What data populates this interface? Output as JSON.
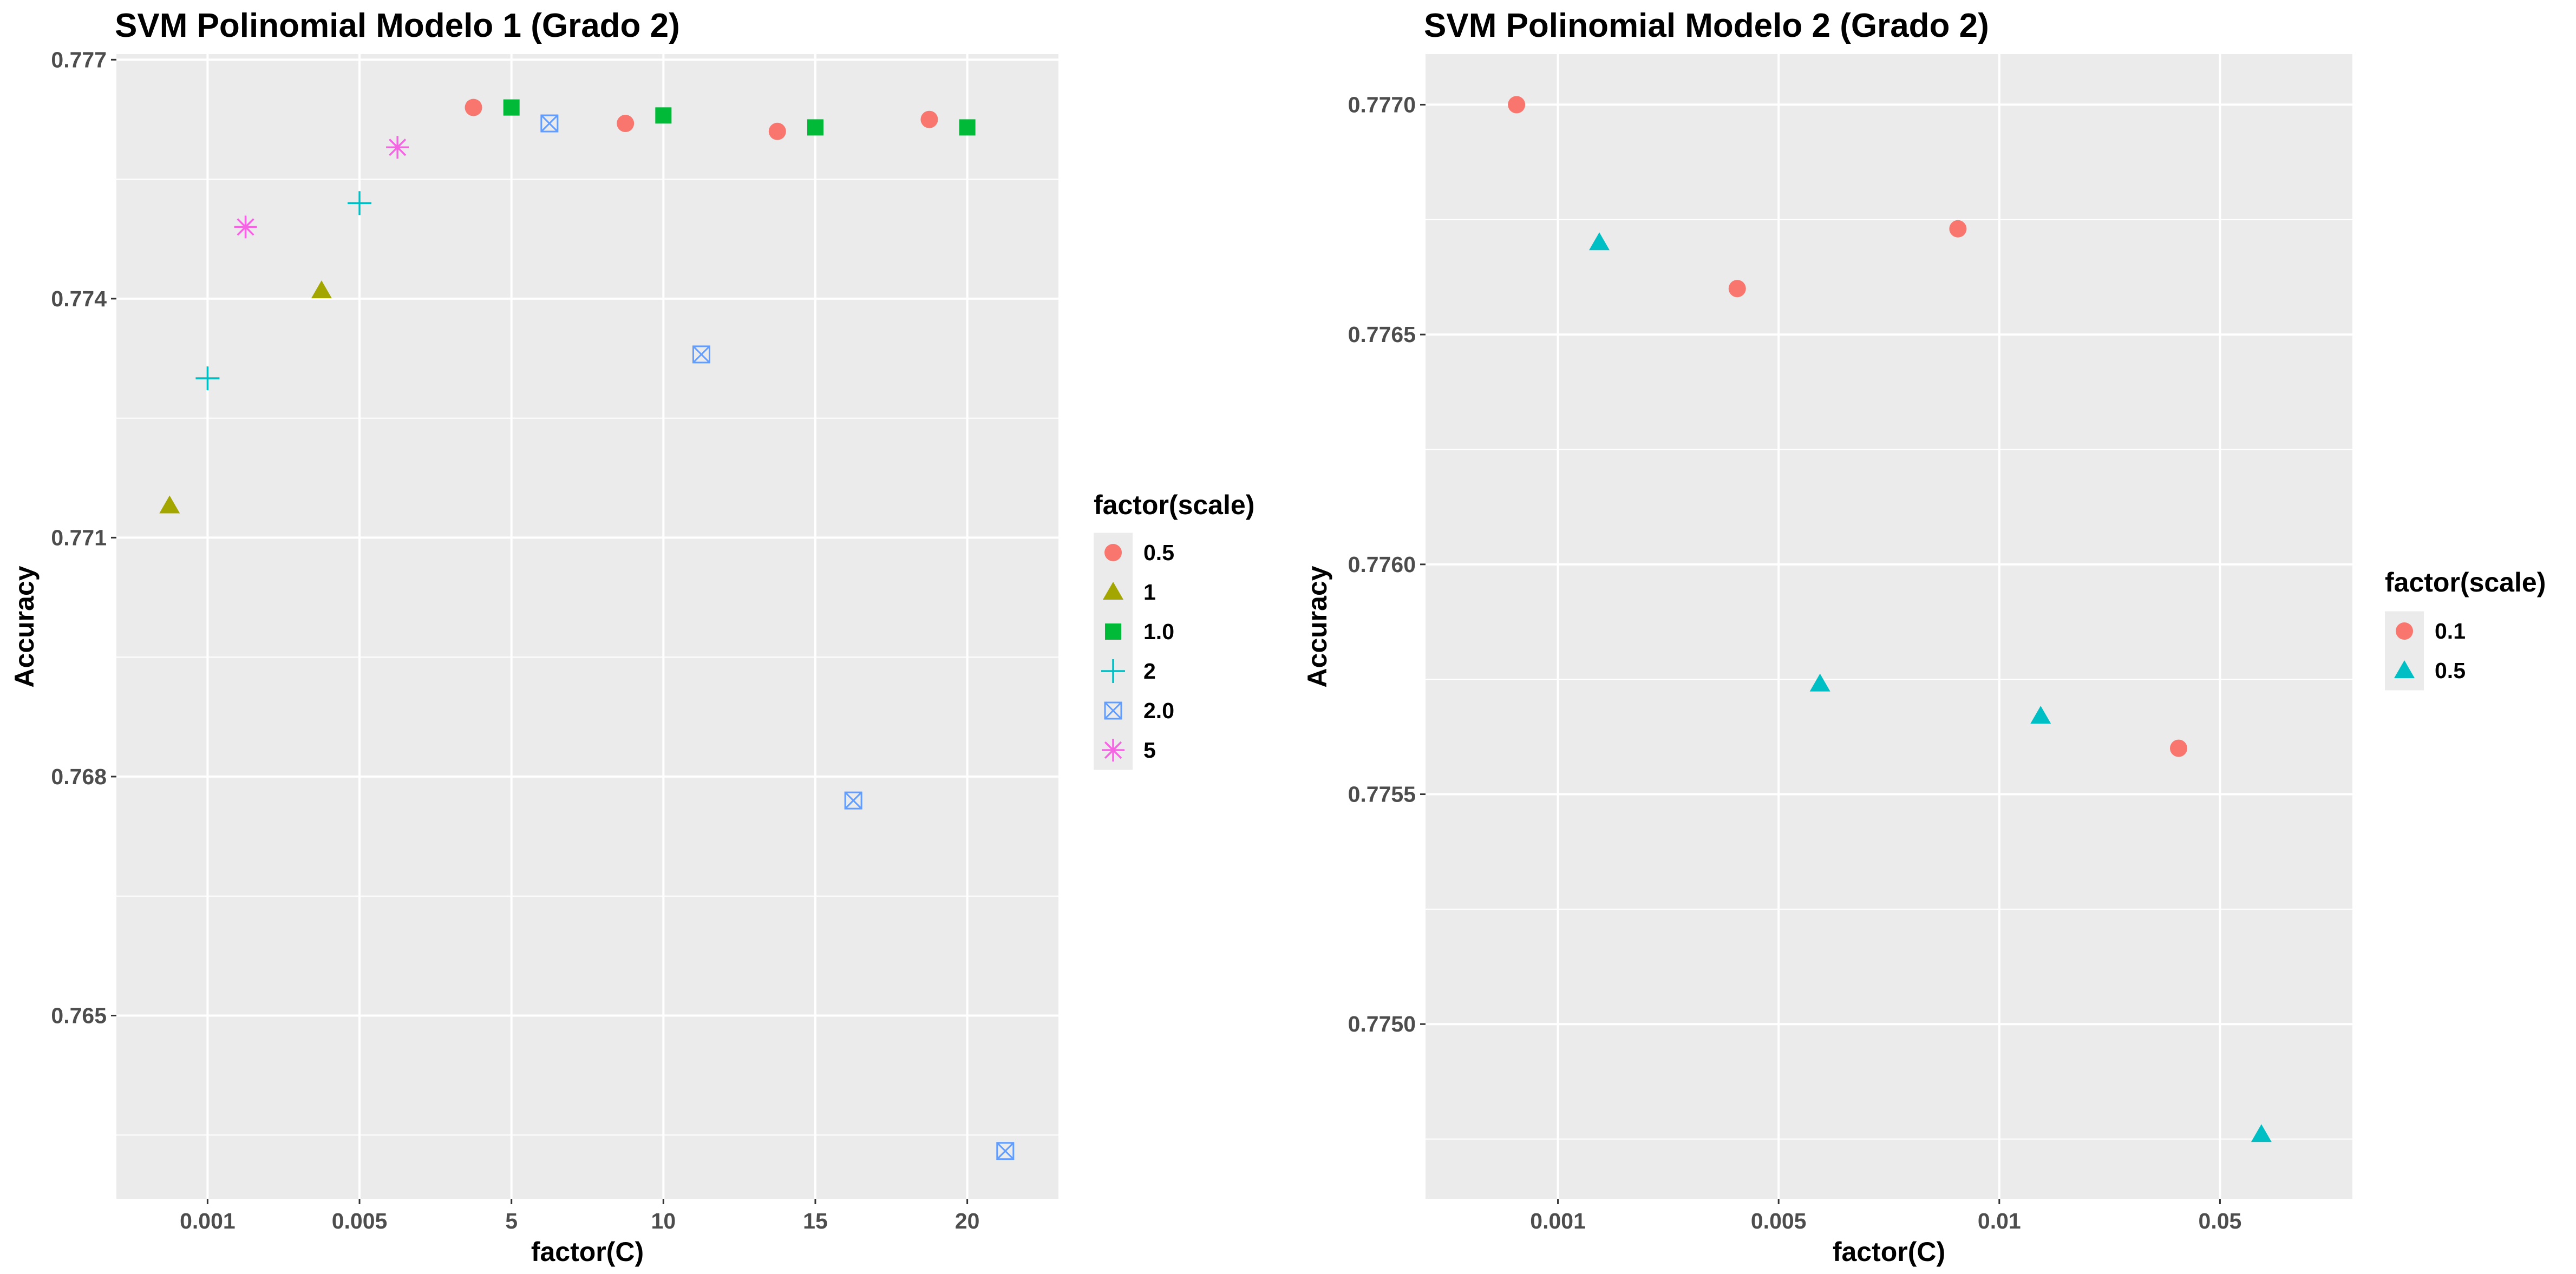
{
  "chart_data": [
    {
      "type": "scatter",
      "title": "SVM Polinomial Modelo 1 (Grado 2)",
      "xlabel": "factor(C)",
      "ylabel": "Accuracy",
      "categories": [
        "0.001",
        "0.005",
        "5",
        "10",
        "15",
        "20"
      ],
      "yticks": [
        "0.777",
        "0.774",
        "0.771",
        "0.768",
        "0.765"
      ],
      "yticks_values": [
        0.777,
        0.774,
        0.771,
        0.768,
        0.765
      ],
      "ylim": [
        0.7627,
        0.77707
      ],
      "legend_title": "factor(scale)",
      "legend_position": "right",
      "grid": true,
      "series": [
        {
          "name": "0.5",
          "shape": "circle",
          "color": "#F8766D",
          "points": [
            {
              "x": "5",
              "y": 0.7764
            },
            {
              "x": "10",
              "y": 0.7762
            },
            {
              "x": "15",
              "y": 0.7761
            },
            {
              "x": "20",
              "y": 0.77625
            }
          ]
        },
        {
          "name": "1",
          "shape": "triangle",
          "color": "#A3A500",
          "points": [
            {
              "x": "0.001",
              "y": 0.7714
            },
            {
              "x": "0.005",
              "y": 0.7741
            }
          ]
        },
        {
          "name": "1.0",
          "shape": "square",
          "color": "#00BA38",
          "points": [
            {
              "x": "5",
              "y": 0.7764
            },
            {
              "x": "10",
              "y": 0.7763
            },
            {
              "x": "15",
              "y": 0.77615
            },
            {
              "x": "20",
              "y": 0.77615
            }
          ]
        },
        {
          "name": "2",
          "shape": "plus",
          "color": "#00BFC4",
          "points": [
            {
              "x": "0.001",
              "y": 0.773
            },
            {
              "x": "0.005",
              "y": 0.7752
            }
          ]
        },
        {
          "name": "2.0",
          "shape": "boxcross",
          "color": "#619CFF",
          "points": [
            {
              "x": "5",
              "y": 0.7762
            },
            {
              "x": "10",
              "y": 0.7733
            },
            {
              "x": "15",
              "y": 0.7677
            },
            {
              "x": "20",
              "y": 0.7633
            }
          ]
        },
        {
          "name": "5",
          "shape": "asterisk",
          "color": "#F564E3",
          "points": [
            {
              "x": "0.001",
              "y": 0.7749
            },
            {
              "x": "0.005",
              "y": 0.7759
            }
          ]
        }
      ]
    },
    {
      "type": "scatter",
      "title": "SVM Polinomial Modelo 2 (Grado 2)",
      "xlabel": "factor(C)",
      "ylabel": "Accuracy",
      "categories": [
        "0.001",
        "0.005",
        "0.01",
        "0.05"
      ],
      "yticks": [
        "0.7770",
        "0.7765",
        "0.7760",
        "0.7755",
        "0.7750"
      ],
      "yticks_values": [
        0.777,
        0.7765,
        0.776,
        0.7755,
        0.775
      ],
      "ylim": [
        0.77462,
        0.77711
      ],
      "legend_title": "factor(scale)",
      "legend_position": "right",
      "grid": true,
      "series": [
        {
          "name": "0.1",
          "shape": "circle",
          "color": "#F8766D",
          "points": [
            {
              "x": "0.001",
              "y": 0.777
            },
            {
              "x": "0.005",
              "y": 0.7766
            },
            {
              "x": "0.01",
              "y": 0.77673
            },
            {
              "x": "0.05",
              "y": 0.7756
            }
          ]
        },
        {
          "name": "0.5",
          "shape": "triangle",
          "color": "#00BFC4",
          "points": [
            {
              "x": "0.001",
              "y": 0.7767
            },
            {
              "x": "0.005",
              "y": 0.77574
            },
            {
              "x": "0.01",
              "y": 0.77567
            },
            {
              "x": "0.05",
              "y": 0.77476
            }
          ]
        }
      ]
    }
  ]
}
